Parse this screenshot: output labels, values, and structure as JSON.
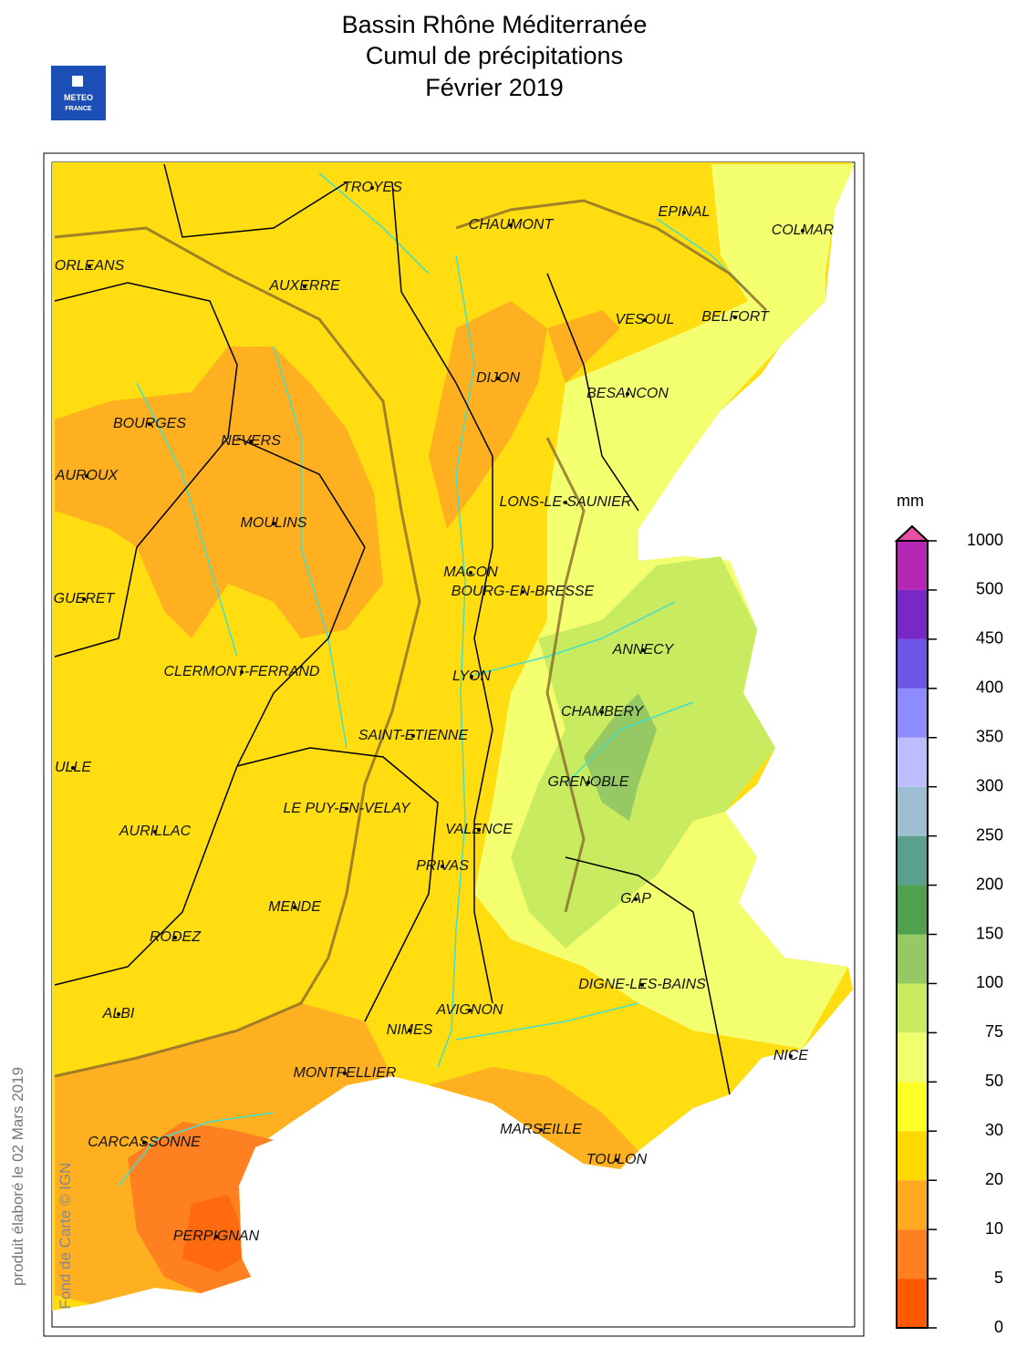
{
  "header": {
    "title_lines": [
      "Bassin Rhône Méditerranée",
      "Cumul de précipitations",
      "Février 2019"
    ],
    "logo": [
      "METEO",
      "FRANCE"
    ]
  },
  "map": {
    "cities": [
      "TROYES",
      "CHAUMONT",
      "EPINAL",
      "COLMAR",
      "ORLEANS",
      "AUXERRE",
      "VESOUL",
      "BELFORT",
      "DIJON",
      "BESANCON",
      "BOURGES",
      "NEVERS",
      "AUROUX",
      "LONS-LE-SAUNIER",
      "MOULINS",
      "MACON",
      "BOURG-EN-BRESSE",
      "GUERET",
      "ANNECY",
      "CLERMONT-FERRAND",
      "LYON",
      "CHAMBERY",
      "SAINT-ETIENNE",
      "ULLE",
      "GRENOBLE",
      "LE PUY-EN-VELAY",
      "AURILLAC",
      "VALENCE",
      "PRIVAS",
      "GAP",
      "MENDE",
      "RODEZ",
      "DIGNE-LES-BAINS",
      "AVIGNON",
      "ALBI",
      "NIMES",
      "NICE",
      "MONTPELLIER",
      "CARCASSONNE",
      "MARSEILLE",
      "TOULON",
      "PERPIGNAN"
    ]
  },
  "legend": {
    "unit": "mm",
    "levels": [
      0,
      5,
      10,
      20,
      30,
      50,
      75,
      100,
      150,
      200,
      250,
      300,
      350,
      400,
      450,
      500,
      1000
    ],
    "colors": [
      "#ff5a00",
      "#ff8020",
      "#ffaa1e",
      "#ffd800",
      "#ffff28",
      "#f0ff6e",
      "#c8eb5f",
      "#96c864",
      "#50a050",
      "#5aa08c",
      "#a0bed2",
      "#bebeff",
      "#8c8cff",
      "#6e55e6",
      "#7828c8",
      "#b428b4"
    ],
    "overflow_color": "#e650a0"
  },
  "footer": {
    "credit": "produit élaboré le 02 Mars 2019",
    "source": "Fond de Carte © IGN"
  }
}
